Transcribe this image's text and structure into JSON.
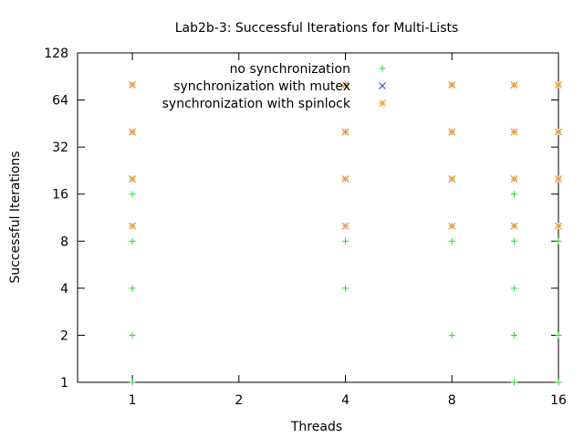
{
  "chart_data": {
    "type": "scatter",
    "title": "Lab2b-3: Successful Iterations for Multi-Lists",
    "xlabel": "Threads",
    "ylabel": "Successful Iterations",
    "x_scale": "log2",
    "y_scale": "log2",
    "xlim": [
      0.7,
      16
    ],
    "ylim": [
      1,
      128
    ],
    "x_ticks": [
      1,
      2,
      4,
      8,
      16
    ],
    "y_ticks": [
      1,
      2,
      4,
      8,
      16,
      32,
      64,
      128
    ],
    "grid": false,
    "legend_position": "top-center",
    "series": [
      {
        "name": "no synchronization",
        "marker": "plus",
        "color": "#22dd22",
        "points": [
          [
            1,
            1
          ],
          [
            1,
            2
          ],
          [
            1,
            4
          ],
          [
            1,
            8
          ],
          [
            1,
            16
          ],
          [
            4,
            4
          ],
          [
            4,
            8
          ],
          [
            8,
            2
          ],
          [
            8,
            8
          ],
          [
            12,
            1
          ],
          [
            12,
            2
          ],
          [
            12,
            4
          ],
          [
            12,
            8
          ],
          [
            12,
            16
          ],
          [
            16,
            1
          ],
          [
            16,
            2
          ],
          [
            16,
            8
          ]
        ]
      },
      {
        "name": "synchronization with mutex",
        "marker": "cross",
        "color": "#1a3ad6",
        "points": [
          [
            1,
            10
          ],
          [
            1,
            20
          ],
          [
            1,
            40
          ],
          [
            1,
            80
          ],
          [
            4,
            10
          ],
          [
            4,
            20
          ],
          [
            4,
            40
          ],
          [
            4,
            80
          ],
          [
            8,
            10
          ],
          [
            8,
            20
          ],
          [
            8,
            40
          ],
          [
            8,
            80
          ],
          [
            12,
            10
          ],
          [
            12,
            20
          ],
          [
            12,
            40
          ],
          [
            12,
            80
          ],
          [
            16,
            10
          ],
          [
            16,
            20
          ],
          [
            16,
            40
          ],
          [
            16,
            80
          ]
        ]
      },
      {
        "name": "synchronization with spinlock",
        "marker": "star",
        "color": "#f0a030",
        "points": [
          [
            1,
            10
          ],
          [
            1,
            20
          ],
          [
            1,
            40
          ],
          [
            1,
            80
          ],
          [
            4,
            10
          ],
          [
            4,
            20
          ],
          [
            4,
            40
          ],
          [
            4,
            80
          ],
          [
            8,
            10
          ],
          [
            8,
            20
          ],
          [
            8,
            40
          ],
          [
            8,
            80
          ],
          [
            12,
            10
          ],
          [
            12,
            20
          ],
          [
            12,
            40
          ],
          [
            12,
            80
          ],
          [
            16,
            10
          ],
          [
            16,
            20
          ],
          [
            16,
            40
          ],
          [
            16,
            80
          ]
        ]
      }
    ]
  }
}
